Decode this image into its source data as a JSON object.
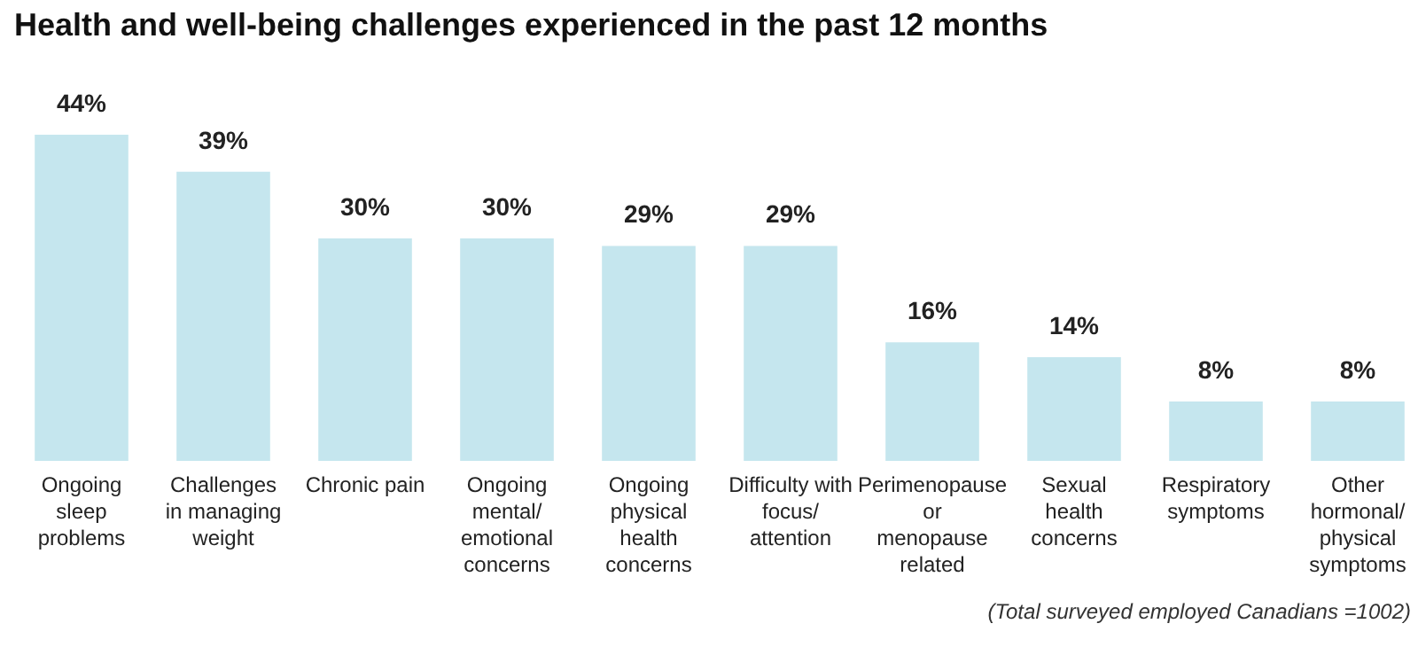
{
  "chart_data": {
    "type": "bar",
    "title": "Health and well-being challenges experienced in the past 12 months",
    "categories": [
      "Ongoing sleep problems",
      "Challenges in managing weight",
      "Chronic pain",
      "Ongoing mental/ emotional concerns",
      "Ongoing physical health concerns",
      "Difficulty with focus/ attention",
      "Perimenopause or menopause related",
      "Sexual health concerns",
      "Respiratory symptoms",
      "Other hormonal/ physical symptoms"
    ],
    "values": [
      44,
      39,
      30,
      30,
      29,
      29,
      16,
      14,
      8,
      8
    ],
    "value_labels": [
      "44%",
      "39%",
      "30%",
      "30%",
      "29%",
      "29%",
      "16%",
      "14%",
      "8%",
      "8%"
    ],
    "color": "#c5e6ee",
    "annotations": [
      "(Total surveyed employed Canadians =1002)"
    ]
  }
}
